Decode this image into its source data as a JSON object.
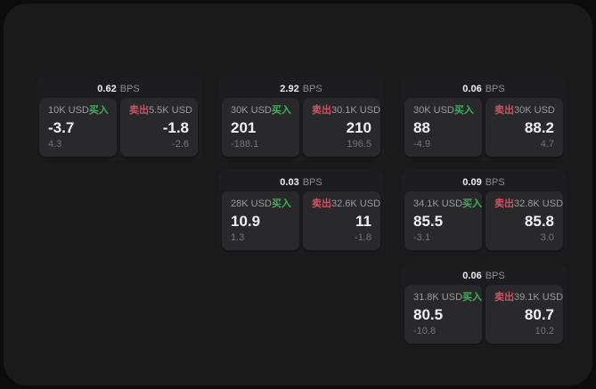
{
  "labels": {
    "bps_unit": "BPS",
    "buy": "买入",
    "sell": "卖出"
  },
  "colors": {
    "buy_green": "#3fae5a",
    "sell_red": "#cd5364",
    "window_bg": "#1a1a1b",
    "card_bg": "#1d1d1f",
    "panel_bg": "#29292b"
  },
  "columns": [
    {
      "cards": [
        {
          "bps": "0.62",
          "buy": {
            "notional": "10K USD",
            "price": "-3.7",
            "change": "4.3"
          },
          "sell": {
            "notional": "5.5K USD",
            "price": "-1.8",
            "change": "-2.6"
          }
        }
      ]
    },
    {
      "cards": [
        {
          "bps": "2.92",
          "buy": {
            "notional": "30K USD",
            "price": "201",
            "change": "-188.1"
          },
          "sell": {
            "notional": "30.1K USD",
            "price": "210",
            "change": "196.5"
          }
        },
        {
          "bps": "0.03",
          "buy": {
            "notional": "28K USD",
            "price": "10.9",
            "change": "1.3"
          },
          "sell": {
            "notional": "32.6K USD",
            "price": "11",
            "change": "-1.8"
          }
        }
      ]
    },
    {
      "cards": [
        {
          "bps": "0.06",
          "buy": {
            "notional": "30K USD",
            "price": "88",
            "change": "-4.9"
          },
          "sell": {
            "notional": "30K USD",
            "price": "88.2",
            "change": "4.7"
          }
        },
        {
          "bps": "0.09",
          "buy": {
            "notional": "34.1K USD",
            "price": "85.5",
            "change": "-3.1"
          },
          "sell": {
            "notional": "32.8K USD",
            "price": "85.8",
            "change": "3.0"
          }
        },
        {
          "bps": "0.06",
          "buy": {
            "notional": "31.8K USD",
            "price": "80.5",
            "change": "-10.8"
          },
          "sell": {
            "notional": "39.1K USD",
            "price": "80.7",
            "change": "10.2"
          }
        }
      ]
    }
  ]
}
